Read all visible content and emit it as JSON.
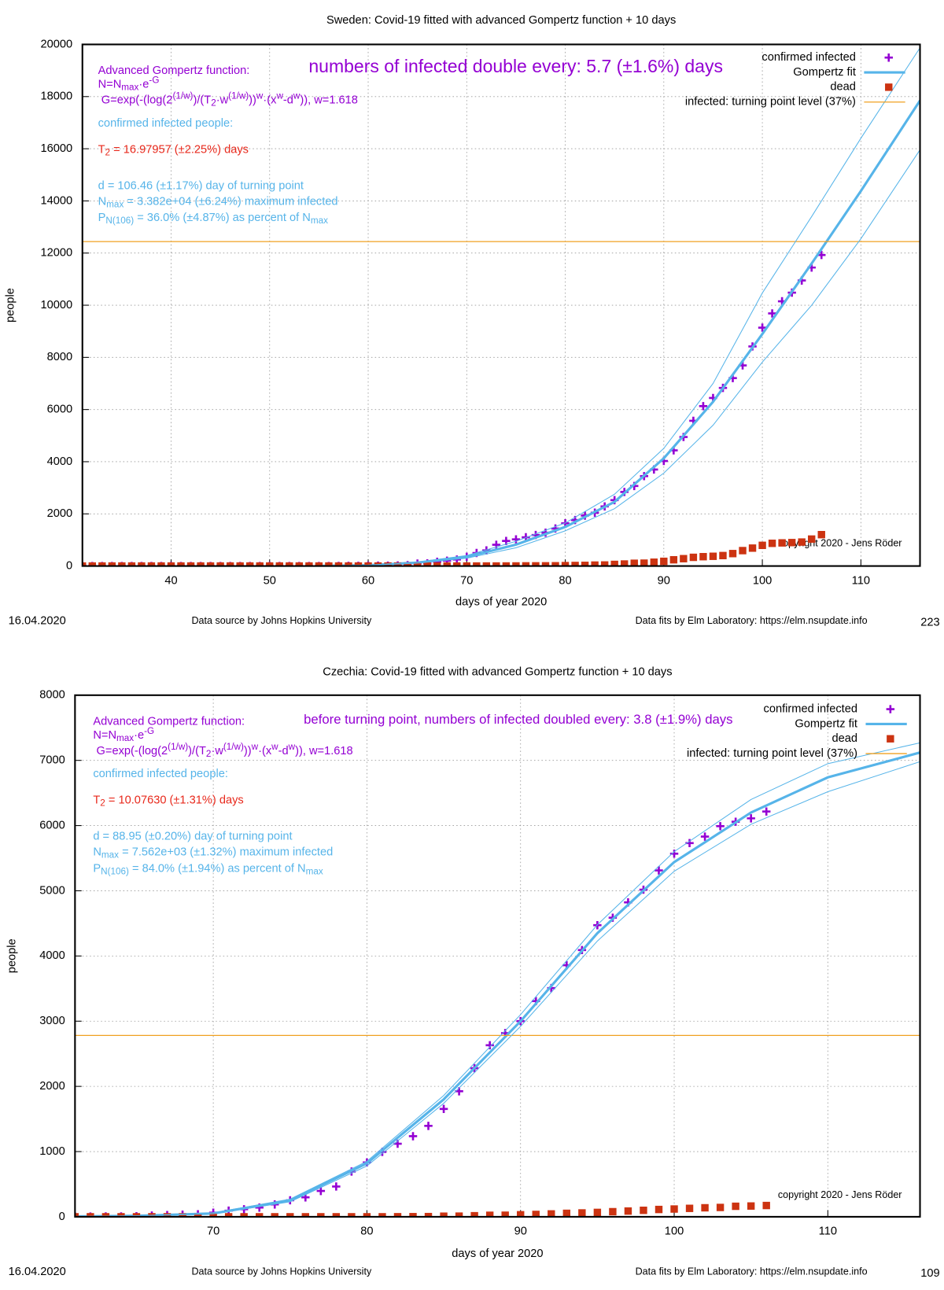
{
  "chart_data": [
    {
      "type": "scatter",
      "title": "Sweden: Covid-19 fitted with advanced Gompertz function + 10 days",
      "xlabel": "days of year 2020",
      "ylabel": "people",
      "xlim": [
        31,
        116
      ],
      "ylim": [
        0,
        20000
      ],
      "xticks": [
        40,
        50,
        60,
        70,
        80,
        90,
        100,
        110
      ],
      "yticks": [
        0,
        2000,
        4000,
        6000,
        8000,
        10000,
        12000,
        14000,
        16000,
        18000,
        20000
      ],
      "grid": true,
      "legend": "top right",
      "x": [
        31,
        32,
        33,
        34,
        35,
        36,
        37,
        38,
        39,
        40,
        41,
        42,
        43,
        44,
        45,
        46,
        47,
        48,
        49,
        50,
        51,
        52,
        53,
        54,
        55,
        56,
        57,
        58,
        59,
        60,
        61,
        62,
        63,
        64,
        65,
        66,
        67,
        68,
        69,
        70,
        71,
        72,
        73,
        74,
        75,
        76,
        77,
        78,
        79,
        80,
        81,
        82,
        83,
        84,
        85,
        86,
        87,
        88,
        89,
        90,
        91,
        92,
        93,
        94,
        95,
        96,
        97,
        98,
        99,
        100,
        101,
        102,
        103,
        104,
        105,
        106
      ],
      "series": [
        {
          "name": "confirmed infected",
          "color": "#9400d3",
          "marker": "plus",
          "values": [
            1,
            1,
            1,
            1,
            1,
            1,
            1,
            1,
            1,
            1,
            1,
            1,
            1,
            1,
            1,
            1,
            1,
            1,
            1,
            1,
            1,
            1,
            1,
            1,
            1,
            1,
            2,
            7,
            7,
            12,
            14,
            15,
            21,
            35,
            94,
            101,
            161,
            203,
            248,
            355,
            500,
            599,
            814,
            961,
            1022,
            1103,
            1190,
            1279,
            1439,
            1639,
            1763,
            1934,
            2046,
            2286,
            2526,
            2840,
            3069,
            3447,
            3700,
            4028,
            4435,
            4947,
            5568,
            6131,
            6443,
            6830,
            7206,
            7693,
            8419,
            9141,
            9685,
            10151,
            10483,
            10948,
            11445,
            11927
          ]
        },
        {
          "name": "Gompertz fit",
          "color": "#56b4e9",
          "marker": "line",
          "x": [
            55,
            60,
            65,
            70,
            75,
            80,
            85,
            90,
            95,
            100,
            105,
            110,
            116
          ],
          "values": [
            5,
            30,
            130,
            350,
            820,
            1500,
            2460,
            4130,
            6300,
            8900,
            11600,
            14380,
            17850
          ]
        },
        {
          "name": "dead",
          "color": "#cc3311",
          "marker": "square",
          "values": [
            0,
            0,
            0,
            0,
            0,
            0,
            0,
            0,
            0,
            0,
            0,
            0,
            0,
            0,
            0,
            0,
            0,
            0,
            0,
            0,
            0,
            0,
            0,
            0,
            0,
            0,
            0,
            0,
            0,
            0,
            0,
            0,
            0,
            0,
            0,
            0,
            0,
            0,
            0,
            0,
            0,
            1,
            1,
            2,
            3,
            6,
            7,
            8,
            10,
            16,
            21,
            25,
            36,
            40,
            62,
            77,
            105,
            110,
            146,
            180,
            239,
            282,
            333,
            358,
            373,
            401,
            477,
            591,
            687,
            793,
            870,
            887,
            899,
            919,
            1033,
            1203
          ]
        },
        {
          "name": "infected: turning point level (37%)",
          "color": "#f0a020",
          "marker": "hline",
          "values": [
            12440
          ]
        },
        {
          "color": "#56b4e9",
          "marker": "thin-line",
          "x": [
            55,
            60,
            65,
            70,
            75,
            80,
            85,
            90,
            95,
            100,
            105,
            110,
            116
          ],
          "values": [
            5,
            35,
            150,
            400,
            950,
            1650,
            2750,
            4510,
            7000,
            10470,
            13400,
            16400,
            19870
          ]
        },
        {
          "color": "#56b4e9",
          "marker": "thin-line",
          "x": [
            55,
            60,
            65,
            70,
            75,
            80,
            85,
            90,
            95,
            100,
            105,
            110,
            116
          ],
          "values": [
            5,
            25,
            110,
            300,
            700,
            1350,
            2200,
            3560,
            5400,
            7820,
            10000,
            12550,
            15960
          ]
        }
      ],
      "annotations": [
        {
          "color": "#9400d3",
          "parts": [
            "Advanced Gompertz function:"
          ]
        },
        {
          "color": "#9400d3",
          "parts": [
            "N=N",
            {
              "sub": "max"
            },
            "·e",
            {
              "sup": "-G"
            }
          ]
        },
        {
          "color": "#9400d3",
          "parts": [
            "G=exp(-(log(2",
            {
              "sup": "(1/w)"
            },
            ")/(T",
            {
              "sub": "2"
            },
            "·w",
            {
              "sup": "(1/w)"
            },
            "))",
            {
              "sup": "w"
            },
            "·(x",
            {
              "sup": "w"
            },
            "-d",
            {
              "sup": "w"
            },
            ")), w=1.618"
          ]
        },
        {
          "color": "#9400d3",
          "size": 22,
          "parts": [
            "numbers of infected double every: 5.7 (±1.6%) days"
          ]
        },
        {
          "color": "#56b4e9",
          "parts": [
            "confirmed infected people:"
          ]
        },
        {
          "color": "#e8291c",
          "parts": [
            "T",
            {
              "sub": "2"
            },
            " = 16.97957 (±2.25%) days"
          ]
        },
        {
          "color": "#56b4e9",
          "parts": [
            "d = 106.46 (±1.17%) day of turning point"
          ]
        },
        {
          "color": "#56b4e9",
          "parts": [
            "N",
            {
              "sub": "max"
            },
            " = 3.382e+04 (±6.24%) maximum infected"
          ]
        },
        {
          "color": "#56b4e9",
          "parts": [
            "P",
            {
              "sub": "N(106)"
            },
            " = 36.0% (±4.87%) as percent of N",
            {
              "sub": "max"
            }
          ]
        }
      ],
      "copyright": "copyright 2020 - Jens Röder",
      "date": "16.04.2020",
      "source": "Data source by Johns Hopkins University",
      "fits": "Data fits by Elm Laboratory: https://elm.nsupdate.info",
      "page": "223"
    },
    {
      "type": "scatter",
      "title": "Czechia: Covid-19 fitted with advanced Gompertz function + 10 days",
      "xlabel": "days of year 2020",
      "ylabel": "people",
      "xlim": [
        61,
        116
      ],
      "ylim": [
        0,
        8000
      ],
      "xticks": [
        70,
        80,
        90,
        100,
        110
      ],
      "yticks": [
        0,
        1000,
        2000,
        3000,
        4000,
        5000,
        6000,
        7000,
        8000
      ],
      "grid": true,
      "legend": "top right",
      "x": [
        61,
        62,
        63,
        64,
        65,
        66,
        67,
        68,
        69,
        70,
        71,
        72,
        73,
        74,
        75,
        76,
        77,
        78,
        79,
        80,
        81,
        82,
        83,
        84,
        85,
        86,
        87,
        88,
        89,
        90,
        91,
        92,
        93,
        94,
        95,
        96,
        97,
        98,
        99,
        100,
        101,
        102,
        103,
        104,
        105,
        106
      ],
      "series": [
        {
          "name": "confirmed infected",
          "color": "#9400d3",
          "marker": "plus",
          "values": [
            3,
            3,
            5,
            5,
            8,
            19,
            26,
            32,
            38,
            63,
            94,
            116,
            141,
            189,
            253,
            298,
            396,
            464,
            694,
            833,
            995,
            1120,
            1236,
            1394,
            1654,
            1925,
            2279,
            2631,
            2817,
            3001,
            3308,
            3508,
            3858,
            4091,
            4472,
            4587,
            4822,
            5017,
            5312,
            5569,
            5732,
            5831,
            5991,
            6059,
            6111,
            6216
          ]
        },
        {
          "name": "Gompertz fit",
          "color": "#56b4e9",
          "marker": "line",
          "x": [
            61,
            65,
            70,
            75,
            80,
            85,
            90,
            95,
            100,
            105,
            110,
            116
          ],
          "values": [
            5,
            15,
            50,
            250,
            820,
            1800,
            3000,
            4350,
            5440,
            6200,
            6740,
            7120
          ]
        },
        {
          "name": "dead",
          "color": "#cc3311",
          "marker": "square",
          "values": [
            0,
            0,
            0,
            0,
            0,
            0,
            0,
            0,
            0,
            0,
            0,
            0,
            0,
            0,
            0,
            0,
            0,
            0,
            0,
            0,
            0,
            1,
            2,
            3,
            9,
            10,
            16,
            23,
            24,
            31,
            36,
            44,
            53,
            59,
            67,
            78,
            88,
            99,
            112,
            119,
            129,
            138,
            143,
            161,
            165,
            173
          ]
        },
        {
          "name": "infected: turning point level (37%)",
          "color": "#f0a020",
          "marker": "hline",
          "values": [
            2782
          ]
        },
        {
          "color": "#56b4e9",
          "marker": "thin-line",
          "x": [
            61,
            65,
            70,
            75,
            80,
            85,
            90,
            95,
            100,
            105,
            110,
            116
          ],
          "values": [
            5,
            15,
            60,
            270,
            850,
            1860,
            3100,
            4480,
            5600,
            6400,
            6950,
            7270
          ]
        },
        {
          "color": "#56b4e9",
          "marker": "thin-line",
          "x": [
            61,
            65,
            70,
            75,
            80,
            85,
            90,
            95,
            100,
            105,
            110,
            116
          ],
          "values": [
            5,
            15,
            45,
            230,
            780,
            1740,
            2920,
            4230,
            5300,
            6020,
            6520,
            6980
          ]
        }
      ],
      "annotations": [
        {
          "color": "#9400d3",
          "parts": [
            "Advanced Gompertz function:"
          ]
        },
        {
          "color": "#9400d3",
          "parts": [
            "N=N",
            {
              "sub": "max"
            },
            "·e",
            {
              "sup": "-G"
            }
          ]
        },
        {
          "color": "#9400d3",
          "parts": [
            "G=exp(-(log(2",
            {
              "sup": "(1/w)"
            },
            ")/(T",
            {
              "sub": "2"
            },
            "·w",
            {
              "sup": "(1/w)"
            },
            "))",
            {
              "sup": "w"
            },
            "·(x",
            {
              "sup": "w"
            },
            "-d",
            {
              "sup": "w"
            },
            ")), w=1.618"
          ]
        },
        {
          "color": "#9400d3",
          "size": 16,
          "parts": [
            "before turning point, numbers of infected doubled every: 3.8 (±1.9%) days"
          ]
        },
        {
          "color": "#56b4e9",
          "parts": [
            "confirmed infected people:"
          ]
        },
        {
          "color": "#e8291c",
          "parts": [
            "T",
            {
              "sub": "2"
            },
            " = 10.07630 (±1.31%) days"
          ]
        },
        {
          "color": "#56b4e9",
          "parts": [
            "d = 88.95 (±0.20%) day of turning point"
          ]
        },
        {
          "color": "#56b4e9",
          "parts": [
            "N",
            {
              "sub": "max"
            },
            " = 7.562e+03 (±1.32%) maximum infected"
          ]
        },
        {
          "color": "#56b4e9",
          "parts": [
            "P",
            {
              "sub": "N(106)"
            },
            " = 84.0% (±1.94%) as percent of N",
            {
              "sub": "max"
            }
          ]
        }
      ],
      "copyright": "copyright 2020 - Jens Röder",
      "date": "16.04.2020",
      "source": "Data source by Johns Hopkins University",
      "fits": "Data fits by Elm Laboratory: https://elm.nsupdate.info",
      "page": "109"
    }
  ]
}
